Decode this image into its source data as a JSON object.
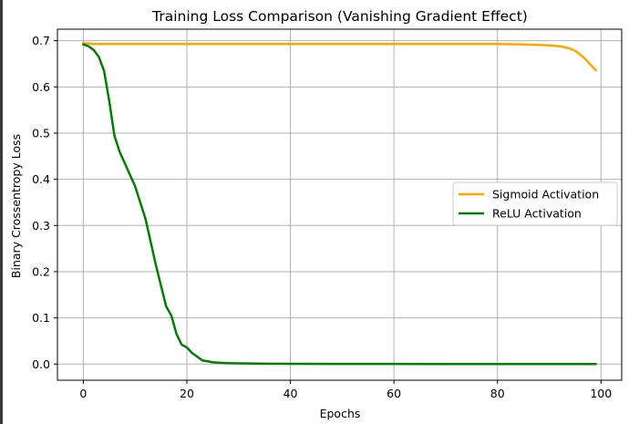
{
  "chart_data": {
    "type": "line",
    "title": "Training Loss Comparison (Vanishing Gradient Effect)",
    "xlabel": "Epochs",
    "ylabel": "Binary Crossentropy Loss",
    "xlim": [
      -5,
      104
    ],
    "ylim": [
      -0.035,
      0.725
    ],
    "xticks": [
      "0",
      "20",
      "40",
      "60",
      "80",
      "100"
    ],
    "yticks": [
      "0.0",
      "0.1",
      "0.2",
      "0.3",
      "0.4",
      "0.5",
      "0.6",
      "0.7"
    ],
    "grid": true,
    "legend_position": "center-right",
    "series": [
      {
        "name": "Sigmoid Activation",
        "color": "#ffa500",
        "x": [
          0,
          1,
          2,
          5,
          10,
          20,
          30,
          40,
          50,
          60,
          70,
          80,
          85,
          88,
          90,
          92,
          93,
          94,
          95,
          96,
          97,
          98,
          99
        ],
        "values": [
          0.695,
          0.694,
          0.693,
          0.693,
          0.693,
          0.693,
          0.693,
          0.693,
          0.693,
          0.693,
          0.693,
          0.693,
          0.692,
          0.691,
          0.69,
          0.688,
          0.686,
          0.683,
          0.678,
          0.67,
          0.66,
          0.648,
          0.636
        ]
      },
      {
        "name": "ReLU Activation",
        "color": "#008000",
        "x": [
          0,
          1,
          2,
          3,
          4,
          5,
          6,
          7,
          8,
          9,
          10,
          11,
          12,
          13,
          14,
          15,
          16,
          17,
          18,
          19,
          20,
          21,
          22,
          23,
          24,
          25,
          26,
          28,
          30,
          35,
          40,
          50,
          60,
          70,
          80,
          90,
          99
        ],
        "values": [
          0.692,
          0.688,
          0.68,
          0.665,
          0.635,
          0.57,
          0.495,
          0.46,
          0.435,
          0.41,
          0.385,
          0.35,
          0.315,
          0.265,
          0.215,
          0.17,
          0.125,
          0.105,
          0.065,
          0.042,
          0.036,
          0.024,
          0.016,
          0.008,
          0.006,
          0.004,
          0.003,
          0.002,
          0.0015,
          0.0008,
          0.0005,
          0.0003,
          0.0002,
          0.0001,
          0.0001,
          0.0001,
          0.0001
        ]
      }
    ]
  }
}
